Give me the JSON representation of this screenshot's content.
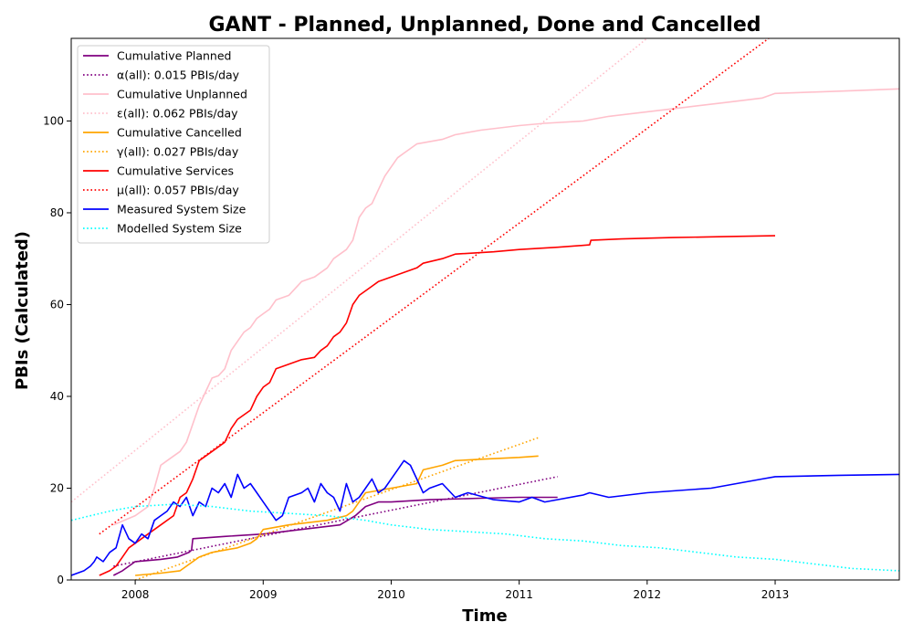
{
  "chart_data": {
    "type": "line",
    "title": "GANT - Planned, Unplanned, Done  and Cancelled",
    "xlabel": "Time",
    "ylabel": "PBIs (Calculated)",
    "xlim": [
      2007.5,
      2013.97
    ],
    "ylim": [
      0,
      118
    ],
    "xticks": [
      2008,
      2009,
      2010,
      2011,
      2012,
      2013
    ],
    "xtick_labels": [
      "2008",
      "2009",
      "2010",
      "2011",
      "2012",
      "2013"
    ],
    "yticks": [
      0,
      20,
      40,
      60,
      80,
      100
    ],
    "ytick_labels": [
      "0",
      "20",
      "40",
      "60",
      "80",
      "100"
    ],
    "grid": false,
    "legend_position": "upper left",
    "series": [
      {
        "name": "Cumulative Planned",
        "color": "#800080",
        "style": "solid",
        "x": [
          2007.83,
          2007.9,
          2007.95,
          2008.0,
          2008.2,
          2008.33,
          2008.42,
          2008.44,
          2008.45,
          2008.7,
          2009.0,
          2009.3,
          2009.6,
          2009.72,
          2009.8,
          2009.9,
          2010.0,
          2010.3,
          2010.7,
          2011.0,
          2011.3
        ],
        "y": [
          1,
          2,
          3,
          4,
          4.5,
          5,
          6,
          6.5,
          9,
          9.5,
          10,
          11,
          12,
          14,
          16,
          17,
          17,
          17.5,
          17.8,
          18,
          18
        ]
      },
      {
        "name": "α(all): 0.015 PBIs/day",
        "color": "#800080",
        "style": "dotted",
        "x": [
          2007.83,
          2011.3
        ],
        "y": [
          3,
          22.5
        ]
      },
      {
        "name": "Cumulative Unplanned",
        "color": "#ffc0cb",
        "style": "solid",
        "x": [
          2007.83,
          2008.0,
          2008.1,
          2008.15,
          2008.2,
          2008.25,
          2008.3,
          2008.35,
          2008.4,
          2008.45,
          2008.5,
          2008.55,
          2008.6,
          2008.65,
          2008.7,
          2008.75,
          2008.8,
          2008.85,
          2008.9,
          2008.95,
          2009.0,
          2009.05,
          2009.1,
          2009.2,
          2009.3,
          2009.4,
          2009.5,
          2009.55,
          2009.6,
          2009.65,
          2009.7,
          2009.75,
          2009.8,
          2009.85,
          2009.9,
          2009.95,
          2010.0,
          2010.05,
          2010.1,
          2010.2,
          2010.4,
          2010.5,
          2010.7,
          2011.0,
          2011.2,
          2011.5,
          2011.7,
          2012.0,
          2012.3,
          2012.6,
          2012.9,
          2013.0,
          2013.3,
          2013.6,
          2013.97
        ],
        "y": [
          12,
          14,
          16,
          20,
          25,
          26,
          27,
          28,
          30,
          34,
          38,
          41,
          44,
          44.5,
          46,
          50,
          52,
          54,
          55,
          57,
          58,
          59,
          61,
          62,
          65,
          66,
          68,
          70,
          71,
          72,
          74,
          79,
          81,
          82,
          85,
          88,
          90,
          92,
          93,
          95,
          96,
          97,
          98,
          99,
          99.5,
          100,
          101,
          102,
          103,
          104,
          105,
          106,
          106.3,
          106.6,
          107
        ]
      },
      {
        "name": "ε(all): 0.062 PBIs/day",
        "color": "#ffc0cb",
        "style": "dotted",
        "x": [
          2007.5,
          2012.0
        ],
        "y": [
          17,
          118
        ]
      },
      {
        "name": "Cumulative Cancelled",
        "color": "#ffa500",
        "style": "solid",
        "x": [
          2008.0,
          2008.2,
          2008.35,
          2008.4,
          2008.45,
          2008.5,
          2008.6,
          2008.8,
          2008.9,
          2008.95,
          2009.0,
          2009.2,
          2009.5,
          2009.65,
          2009.7,
          2009.75,
          2009.8,
          2010.0,
          2010.2,
          2010.25,
          2010.4,
          2010.5,
          2010.7,
          2011.0,
          2011.15
        ],
        "y": [
          1,
          1.5,
          2,
          3,
          4,
          5,
          6,
          7,
          8,
          9,
          11,
          12,
          13,
          14,
          15,
          17,
          19,
          20,
          21,
          24,
          25,
          26,
          26.3,
          26.7,
          27
        ]
      },
      {
        "name": "γ(all): 0.027 PBIs/day",
        "color": "#ffa500",
        "style": "dotted",
        "x": [
          2008.0,
          2011.15
        ],
        "y": [
          0,
          31
        ]
      },
      {
        "name": "Cumulative Services",
        "color": "#ff0000",
        "style": "solid",
        "x": [
          2007.72,
          2007.8,
          2007.85,
          2007.9,
          2007.95,
          2008.0,
          2008.1,
          2008.15,
          2008.2,
          2008.3,
          2008.35,
          2008.4,
          2008.45,
          2008.5,
          2008.55,
          2008.6,
          2008.7,
          2008.75,
          2008.8,
          2008.9,
          2008.95,
          2009.0,
          2009.05,
          2009.1,
          2009.2,
          2009.3,
          2009.4,
          2009.45,
          2009.5,
          2009.55,
          2009.6,
          2009.65,
          2009.7,
          2009.75,
          2009.8,
          2009.85,
          2009.9,
          2009.95,
          2010.0,
          2010.1,
          2010.2,
          2010.25,
          2010.4,
          2010.5,
          2010.8,
          2011.0,
          2011.3,
          2011.55,
          2011.56,
          2011.8,
          2012.2,
          2012.6,
          2013.0
        ],
        "y": [
          1,
          2,
          3,
          5,
          7,
          8,
          10,
          11,
          12,
          14,
          18,
          19,
          22,
          26,
          27,
          28,
          30,
          33,
          35,
          37,
          40,
          42,
          43,
          46,
          47,
          48,
          48.5,
          50,
          51,
          53,
          54,
          56,
          60,
          62,
          63,
          64,
          65,
          65.5,
          66,
          67,
          68,
          69,
          70,
          71,
          71.5,
          72,
          72.5,
          73,
          74,
          74.3,
          74.6,
          74.8,
          75
        ]
      },
      {
        "name": "μ(all): 0.057 PBIs/day",
        "color": "#ff0000",
        "style": "dotted",
        "x": [
          2007.72,
          2012.95
        ],
        "y": [
          10,
          118
        ]
      },
      {
        "name": "Measured System Size",
        "color": "#0000ff",
        "style": "solid",
        "x": [
          2007.5,
          2007.6,
          2007.65,
          2007.68,
          2007.7,
          2007.75,
          2007.8,
          2007.85,
          2007.9,
          2007.95,
          2008.0,
          2008.05,
          2008.1,
          2008.15,
          2008.2,
          2008.25,
          2008.3,
          2008.35,
          2008.4,
          2008.45,
          2008.5,
          2008.55,
          2008.6,
          2008.65,
          2008.7,
          2008.75,
          2008.8,
          2008.85,
          2008.9,
          2008.95,
          2009.0,
          2009.05,
          2009.1,
          2009.15,
          2009.2,
          2009.3,
          2009.35,
          2009.4,
          2009.45,
          2009.5,
          2009.55,
          2009.6,
          2009.65,
          2009.7,
          2009.75,
          2009.8,
          2009.85,
          2009.9,
          2009.95,
          2010.0,
          2010.05,
          2010.1,
          2010.15,
          2010.2,
          2010.25,
          2010.3,
          2010.4,
          2010.5,
          2010.6,
          2010.8,
          2011.0,
          2011.1,
          2011.2,
          2011.5,
          2011.55,
          2011.7,
          2012.0,
          2012.5,
          2012.9,
          2013.0,
          2013.5,
          2013.97
        ],
        "y": [
          1,
          2,
          3,
          4,
          5,
          4,
          6,
          7,
          12,
          9,
          8,
          10,
          9,
          13,
          14,
          15,
          17,
          16,
          18,
          14,
          17,
          16,
          20,
          19,
          21,
          18,
          23,
          20,
          21,
          19,
          17,
          15,
          13,
          14,
          18,
          19,
          20,
          17,
          21,
          19,
          18,
          15,
          21,
          17,
          18,
          20,
          22,
          19,
          20,
          22,
          24,
          26,
          25,
          22,
          19,
          20,
          21,
          18,
          19,
          17.5,
          17,
          18,
          17,
          18.5,
          19,
          18,
          19,
          20,
          22,
          22.5,
          22.8,
          23
        ]
      },
      {
        "name": "Modelled System Size",
        "color": "#00ffff",
        "style": "dotted",
        "x": [
          2007.5,
          2007.8,
          2008.0,
          2008.3,
          2008.6,
          2008.9,
          2009.2,
          2009.5,
          2009.8,
          2010.0,
          2010.3,
          2010.6,
          2010.9,
          2011.2,
          2011.5,
          2011.8,
          2012.1,
          2012.4,
          2012.7,
          2013.0,
          2013.3,
          2013.6,
          2013.97
        ],
        "y": [
          13,
          15,
          16,
          16.5,
          16,
          15,
          14.5,
          14,
          13,
          12,
          11,
          10.5,
          10,
          9,
          8.5,
          7.5,
          7,
          6,
          5,
          4.5,
          3.5,
          2.5,
          2
        ]
      }
    ]
  }
}
